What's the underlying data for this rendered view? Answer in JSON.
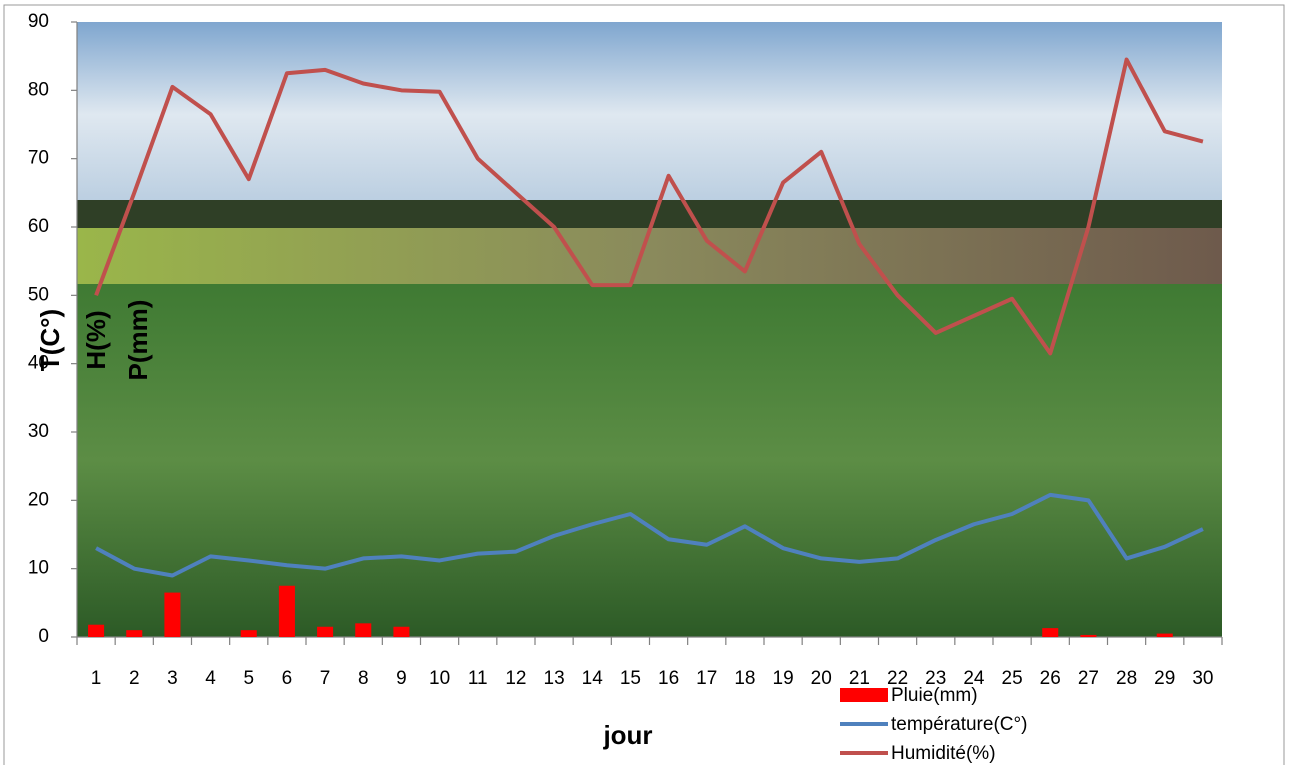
{
  "chart_data": {
    "type": "combo",
    "categories": [
      "1",
      "2",
      "3",
      "4",
      "5",
      "6",
      "7",
      "8",
      "9",
      "10",
      "11",
      "12",
      "13",
      "14",
      "15",
      "16",
      "17",
      "18",
      "19",
      "20",
      "21",
      "22",
      "23",
      "24",
      "25",
      "26",
      "27",
      "28",
      "29",
      "30"
    ],
    "series": [
      {
        "name": "Pluie(mm)",
        "type": "bar",
        "color": "#ff0000",
        "values": [
          1.8,
          1,
          6.5,
          0,
          1,
          7.5,
          1.5,
          2,
          1.5,
          0,
          0,
          0,
          0,
          0,
          0,
          0,
          0,
          0,
          0,
          0,
          0,
          0,
          0,
          0,
          0,
          1.3,
          0.3,
          0,
          0.5,
          0
        ]
      },
      {
        "name": "température(C°)",
        "type": "line",
        "color": "#4f81bd",
        "values": [
          13,
          10,
          9,
          11.8,
          11.2,
          10.5,
          10,
          11.5,
          11.8,
          11.2,
          12.2,
          12.5,
          14.8,
          16.5,
          18,
          14.3,
          13.5,
          16.2,
          13,
          11.5,
          11,
          11.5,
          14.2,
          16.5,
          18,
          20.8,
          20,
          11.5,
          13.2,
          15.8
        ]
      },
      {
        "name": "Humidité(%)",
        "type": "line",
        "color": "#c0504d",
        "values": [
          50,
          65,
          80.5,
          76.5,
          67,
          82.5,
          83,
          81,
          80,
          79.8,
          70,
          65,
          60,
          51.5,
          51.5,
          67.5,
          58,
          53.5,
          66.5,
          71,
          57.5,
          50,
          44.5,
          47,
          49.5,
          41.5,
          60,
          84.5,
          74,
          72.5
        ]
      }
    ],
    "ylim": [
      0,
      90
    ],
    "yticks": [
      0,
      10,
      20,
      30,
      40,
      50,
      60,
      70,
      80,
      90
    ],
    "grid": false,
    "x_label": "jour",
    "y_labels": [
      "T(C°)",
      "H(%)",
      "P(mm)"
    ],
    "legend": "bottom-right"
  }
}
